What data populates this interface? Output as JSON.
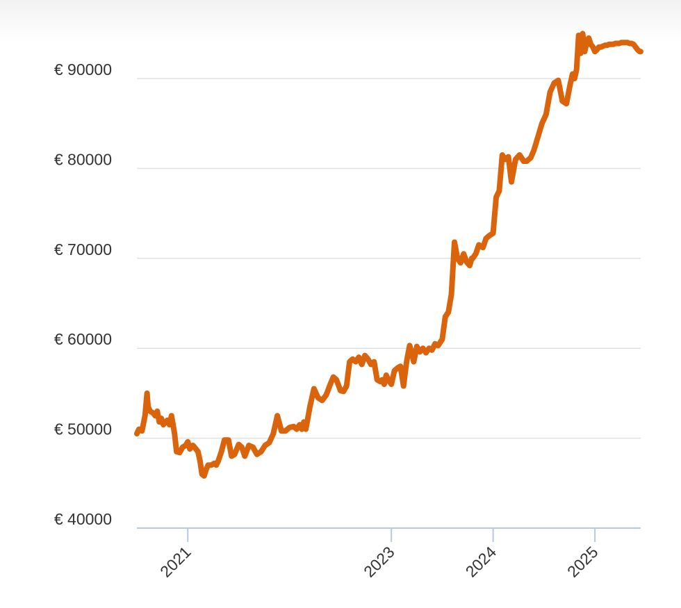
{
  "chart_data": {
    "type": "line",
    "title": "",
    "xlabel": "",
    "ylabel": "",
    "y_tick_labels": [
      "€ 40000",
      "€ 50000",
      "€ 60000",
      "€ 70000",
      "€ 80000",
      "€ 90000"
    ],
    "y_tick_values": [
      40000,
      50000,
      60000,
      70000,
      80000,
      90000
    ],
    "ylim": [
      40000,
      95000
    ],
    "x_tick_labels": [
      "2021",
      "2023",
      "2024",
      "2025"
    ],
    "x_tick_values": [
      2021.0,
      2023.0,
      2024.0,
      2025.0
    ],
    "xlim": [
      2020.5,
      2025.45
    ],
    "grid": true,
    "line_color": "#d9640c",
    "grid_color": "#e0e0e0",
    "axis_color": "#b9c8e0",
    "series": [
      {
        "x": [
          2020.5,
          2020.52,
          2020.55,
          2020.58,
          2020.6,
          2020.61,
          2020.63,
          2020.66,
          2020.68,
          2020.7,
          2020.72,
          2020.74,
          2020.76,
          2020.78,
          2020.8,
          2020.82,
          2020.84,
          2020.86,
          2020.87,
          2020.89,
          2020.92,
          2020.95,
          2020.98,
          2021.0,
          2021.02,
          2021.05,
          2021.08,
          2021.1,
          2021.12,
          2021.14,
          2021.16,
          2021.18,
          2021.2,
          2021.23,
          2021.26,
          2021.28,
          2021.3,
          2021.33,
          2021.36,
          2021.4,
          2021.43,
          2021.46,
          2021.5,
          2021.53,
          2021.56,
          2021.6,
          2021.64,
          2021.68,
          2021.72,
          2021.76,
          2021.8,
          2021.84,
          2021.88,
          2021.92,
          2021.96,
          2022.0,
          2022.04,
          2022.07,
          2022.1,
          2022.12,
          2022.14,
          2022.16,
          2022.2,
          2022.24,
          2022.28,
          2022.32,
          2022.34,
          2022.36,
          2022.4,
          2022.43,
          2022.46,
          2022.5,
          2022.53,
          2022.56,
          2022.59,
          2022.62,
          2022.65,
          2022.68,
          2022.71,
          2022.74,
          2022.77,
          2022.8,
          2022.83,
          2022.86,
          2022.89,
          2022.91,
          2022.93,
          2022.95,
          2022.97,
          2023.0,
          2023.03,
          2023.06,
          2023.09,
          2023.12,
          2023.15,
          2023.18,
          2023.2,
          2023.22,
          2023.25,
          2023.28,
          2023.31,
          2023.34,
          2023.37,
          2023.4,
          2023.43,
          2023.46,
          2023.5,
          2023.53,
          2023.56,
          2023.59,
          2023.62,
          2023.65,
          2023.68,
          2023.71,
          2023.74,
          2023.77,
          2023.79,
          2023.8,
          2023.83,
          2023.86,
          2023.9,
          2023.93,
          2023.96,
          2024.0,
          2024.03,
          2024.06,
          2024.09,
          2024.12,
          2024.15,
          2024.18,
          2024.22,
          2024.26,
          2024.3,
          2024.33,
          2024.37,
          2024.4,
          2024.44,
          2024.48,
          2024.52,
          2024.56,
          2024.6,
          2024.64,
          2024.68,
          2024.72,
          2024.76,
          2024.78,
          2024.8,
          2024.82,
          2024.84,
          2024.86,
          2024.88,
          2024.9,
          2024.92,
          2024.94,
          2024.96,
          2024.98,
          2025.0,
          2025.02,
          2025.04,
          2025.06,
          2025.08,
          2025.1,
          2025.12,
          2025.14,
          2025.16,
          2025.18,
          2025.2,
          2025.22,
          2025.24,
          2025.26,
          2025.28,
          2025.3,
          2025.32,
          2025.34,
          2025.36,
          2025.38,
          2025.4,
          2025.42,
          2025.44,
          2025.45
        ],
        "y": [
          50500,
          51000,
          50800,
          52500,
          55000,
          53500,
          53000,
          52800,
          52500,
          53000,
          51800,
          52200,
          51500,
          51800,
          52000,
          51500,
          52500,
          51200,
          50500,
          48500,
          48400,
          49000,
          49200,
          49600,
          48800,
          49200,
          48800,
          48500,
          47500,
          46000,
          45800,
          46500,
          47000,
          47000,
          47200,
          47000,
          47500,
          48500,
          49800,
          49800,
          48000,
          48200,
          49300,
          49000,
          48000,
          49200,
          49000,
          48200,
          48500,
          49200,
          49500,
          50500,
          52500,
          50800,
          50800,
          51200,
          51300,
          51000,
          51500,
          51000,
          51800,
          51000,
          53500,
          55500,
          54500,
          54200,
          54500,
          54800,
          56000,
          56800,
          56500,
          55300,
          55200,
          55800,
          58500,
          58800,
          58500,
          59000,
          58200,
          59200,
          58800,
          58200,
          58500,
          56500,
          56300,
          56500,
          56000,
          57000,
          56500,
          56000,
          57500,
          57800,
          58000,
          55800,
          58500,
          60300,
          59500,
          58500,
          60200,
          59600,
          60000,
          59500,
          60000,
          59800,
          60500,
          60300,
          61000,
          63500,
          64000,
          66000,
          71800,
          70000,
          69500,
          70500,
          69600,
          69200,
          70000,
          70000,
          70500,
          71500,
          71200,
          72200,
          72500,
          72800,
          76800,
          77500,
          81500,
          81000,
          81300,
          78500,
          81000,
          81500,
          80800,
          80800,
          81200,
          82000,
          83500,
          85000,
          86000,
          88500,
          89500,
          89800,
          87500,
          87200,
          89500,
          90500,
          90000,
          91000,
          94800,
          92800,
          95000,
          93000,
          94000,
          94500,
          93800,
          93500,
          93000,
          93200,
          93500,
          93500,
          93600,
          93700,
          93700,
          93800,
          93800,
          93800,
          93900,
          93900,
          93900,
          94000,
          94000,
          94000,
          94000,
          93900,
          93900,
          93800,
          93500,
          93200,
          93000,
          93000
        ]
      }
    ]
  }
}
